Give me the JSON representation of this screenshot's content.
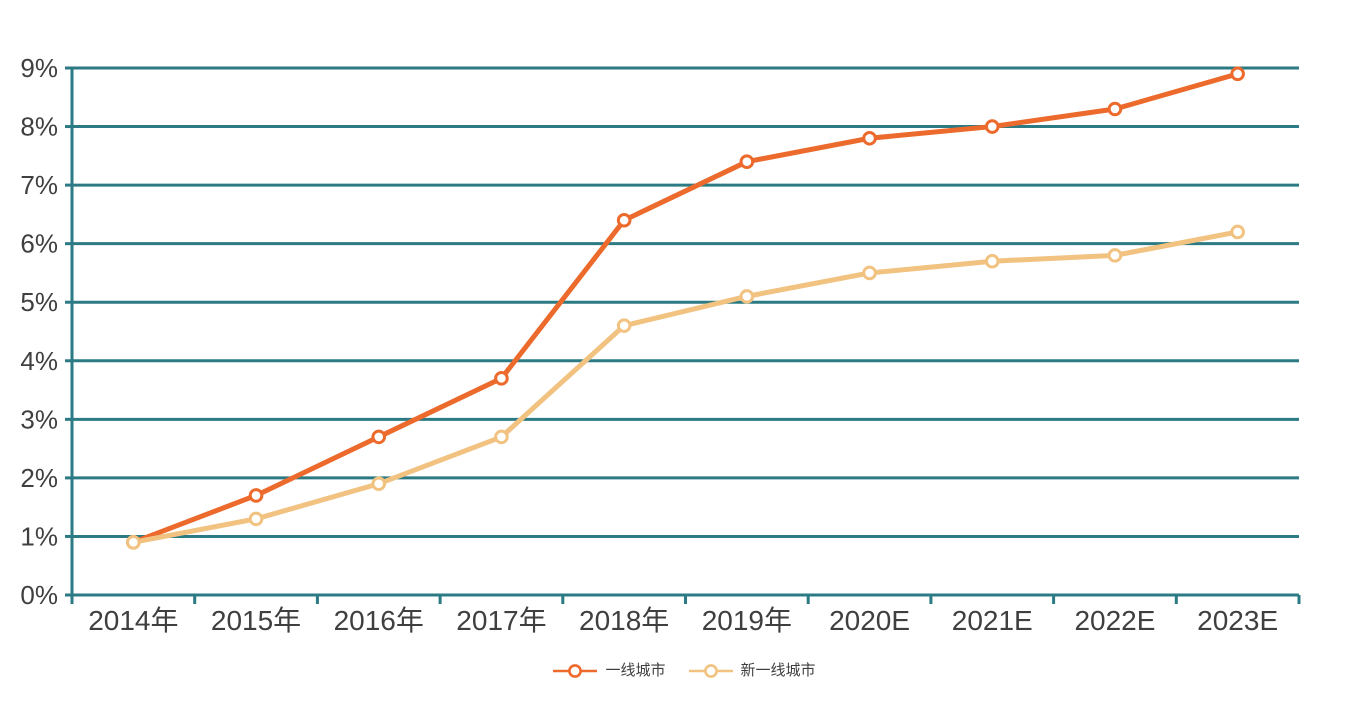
{
  "chart_data": {
    "type": "line",
    "title": "",
    "xlabel": "",
    "ylabel": "",
    "categories": [
      "2014年",
      "2015年",
      "2016年",
      "2017年",
      "2018年",
      "2019年",
      "2020E",
      "2021E",
      "2022E",
      "2023E"
    ],
    "series": [
      {
        "name": "一线城市",
        "color": "#ED6A2D",
        "values": [
          0.9,
          1.7,
          2.7,
          3.7,
          6.4,
          7.4,
          7.8,
          8.0,
          8.3,
          8.9
        ]
      },
      {
        "name": "新一线城市",
        "color": "#F1C280",
        "values": [
          0.9,
          1.3,
          1.9,
          2.7,
          4.6,
          5.1,
          5.5,
          5.7,
          5.8,
          6.2
        ]
      }
    ],
    "ylim": [
      0,
      9
    ],
    "y_tick_step": 1,
    "y_tick_labels": [
      "0%",
      "1%",
      "2%",
      "3%",
      "4%",
      "5%",
      "6%",
      "7%",
      "8%",
      "9%"
    ],
    "unit": "%",
    "grid": true,
    "legend_position": "bottom-center",
    "colors": {
      "axis": "#2B7A84",
      "grid": "#2B7A84",
      "tick_label": "#3F3F3F",
      "marker_fill": "#FFFFFF",
      "background": "#FFFFFF"
    }
  }
}
